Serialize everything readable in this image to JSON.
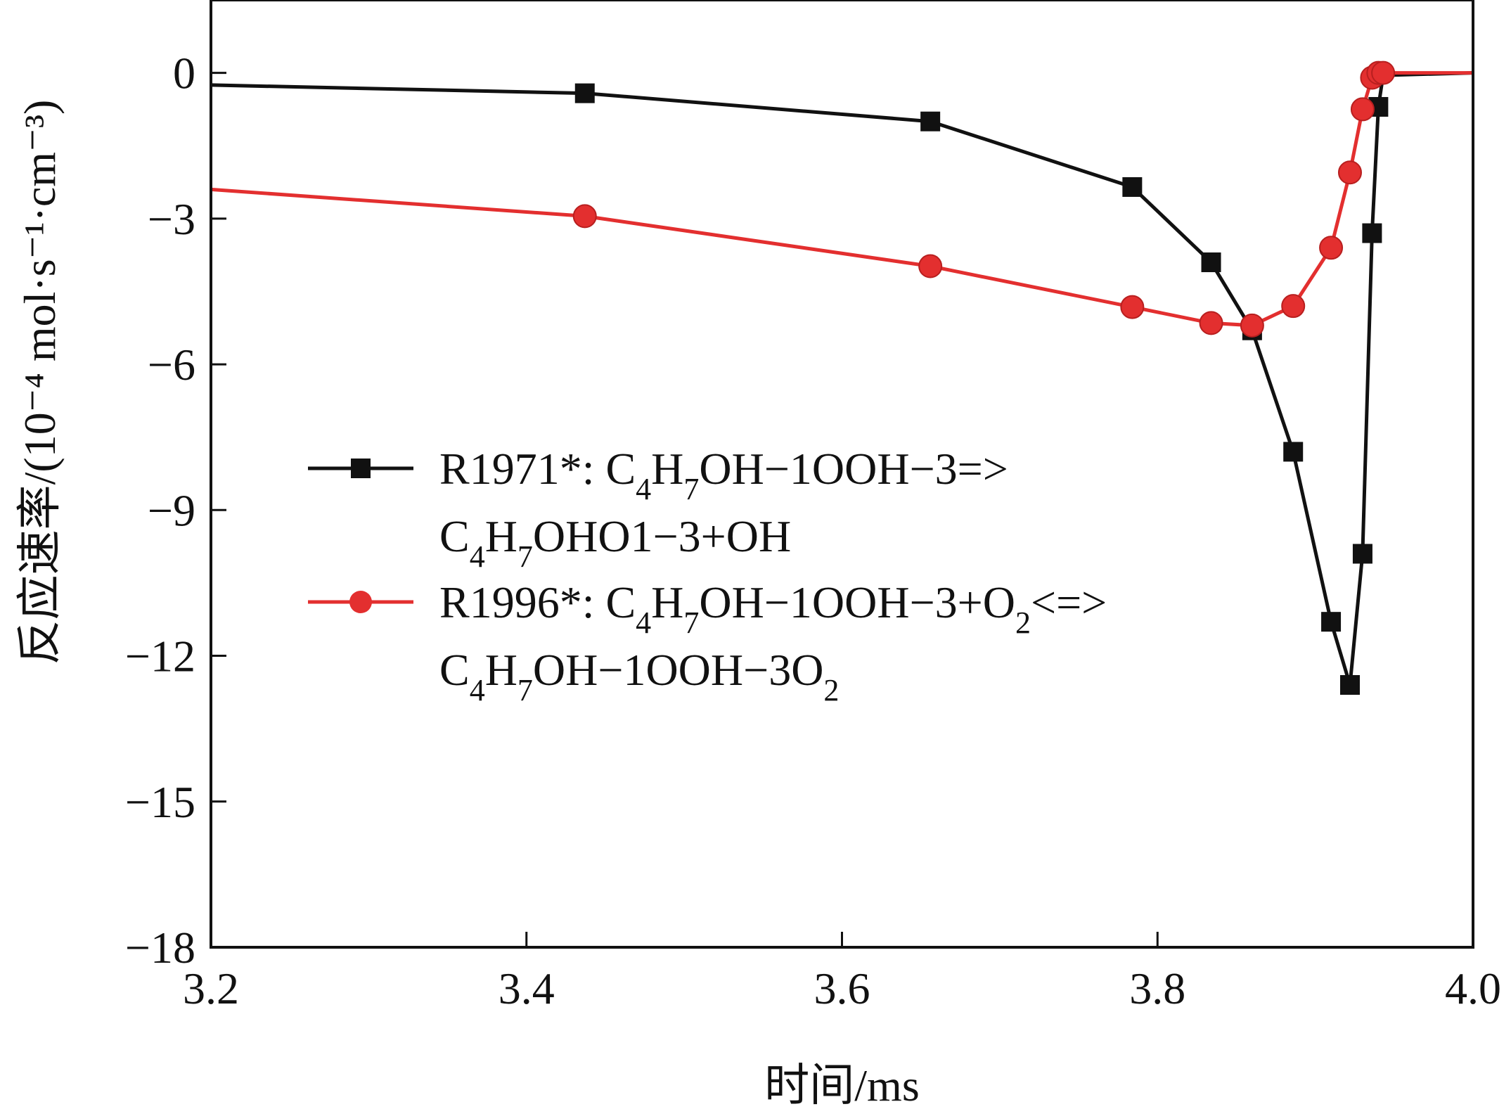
{
  "chart_data": {
    "type": "line",
    "xlabel": "时间/ms",
    "ylabel": "反应速率/(10⁻⁴ mol·s⁻¹·cm⁻³)",
    "xlim": [
      3.2,
      4.0
    ],
    "ylim": [
      -18,
      1.5
    ],
    "x_ticks": [
      3.2,
      3.4,
      3.6,
      3.8,
      4.0
    ],
    "x_tick_labels": [
      "3.2",
      "3.4",
      "3.6",
      "3.8",
      "4.0"
    ],
    "y_ticks": [
      0,
      -3,
      -6,
      -9,
      -12,
      -15,
      -18
    ],
    "y_tick_labels": [
      "0",
      "−3",
      "−6",
      "−9",
      "−12",
      "−15",
      "−18"
    ],
    "grid": false,
    "legend_position": "center-left",
    "series": [
      {
        "name": "R1971*: C4H7OH−1OOH−3=> C4H7OHO1−3+OH",
        "legend_lines": [
          [
            {
              "t": "R1971*: C"
            },
            {
              "t": "4",
              "sub": true
            },
            {
              "t": "H"
            },
            {
              "t": "7",
              "sub": true
            },
            {
              "t": "OH−1OOH−3=>"
            }
          ],
          [
            {
              "t": "C"
            },
            {
              "t": "4",
              "sub": true
            },
            {
              "t": "H"
            },
            {
              "t": "7",
              "sub": true
            },
            {
              "t": "OHO1−3+OH"
            }
          ]
        ],
        "color": "#111111",
        "marker": "square",
        "x": [
          3.2,
          3.437,
          3.656,
          3.784,
          3.834,
          3.86,
          3.886,
          3.91,
          3.922,
          3.93,
          3.936,
          3.94,
          3.943,
          4.0
        ],
        "y": [
          -0.25,
          -0.42,
          -1.0,
          -2.35,
          -3.9,
          -5.3,
          -7.8,
          -11.3,
          -12.6,
          -9.9,
          -3.3,
          -0.7,
          -0.05,
          0.0
        ],
        "marker_mask": [
          false,
          true,
          true,
          true,
          true,
          true,
          true,
          true,
          true,
          true,
          true,
          true,
          false,
          false
        ]
      },
      {
        "name": "R1996*: C4H7OH−1OOH−3+O2<=> C4H7OH−1OOH−3O2",
        "legend_lines": [
          [
            {
              "t": "R1996*: C"
            },
            {
              "t": "4",
              "sub": true
            },
            {
              "t": "H"
            },
            {
              "t": "7",
              "sub": true
            },
            {
              "t": "OH−1OOH−3+O"
            },
            {
              "t": "2",
              "sub": true
            },
            {
              "t": "<=>"
            }
          ],
          [
            {
              "t": "C"
            },
            {
              "t": "4",
              "sub": true
            },
            {
              "t": "H"
            },
            {
              "t": "7",
              "sub": true
            },
            {
              "t": "OH−1OOH−3O"
            },
            {
              "t": "2",
              "sub": true
            }
          ]
        ],
        "color": "#e32f2f",
        "marker": "circle",
        "x": [
          3.2,
          3.437,
          3.656,
          3.784,
          3.834,
          3.86,
          3.886,
          3.91,
          3.922,
          3.93,
          3.936,
          3.94,
          3.943,
          4.0
        ],
        "y": [
          -2.4,
          -2.95,
          -3.98,
          -4.82,
          -5.15,
          -5.2,
          -4.8,
          -3.6,
          -2.05,
          -0.75,
          -0.1,
          0.0,
          0.0,
          0.0
        ],
        "marker_mask": [
          false,
          true,
          true,
          true,
          true,
          true,
          true,
          true,
          true,
          true,
          true,
          true,
          true,
          false
        ]
      }
    ]
  }
}
